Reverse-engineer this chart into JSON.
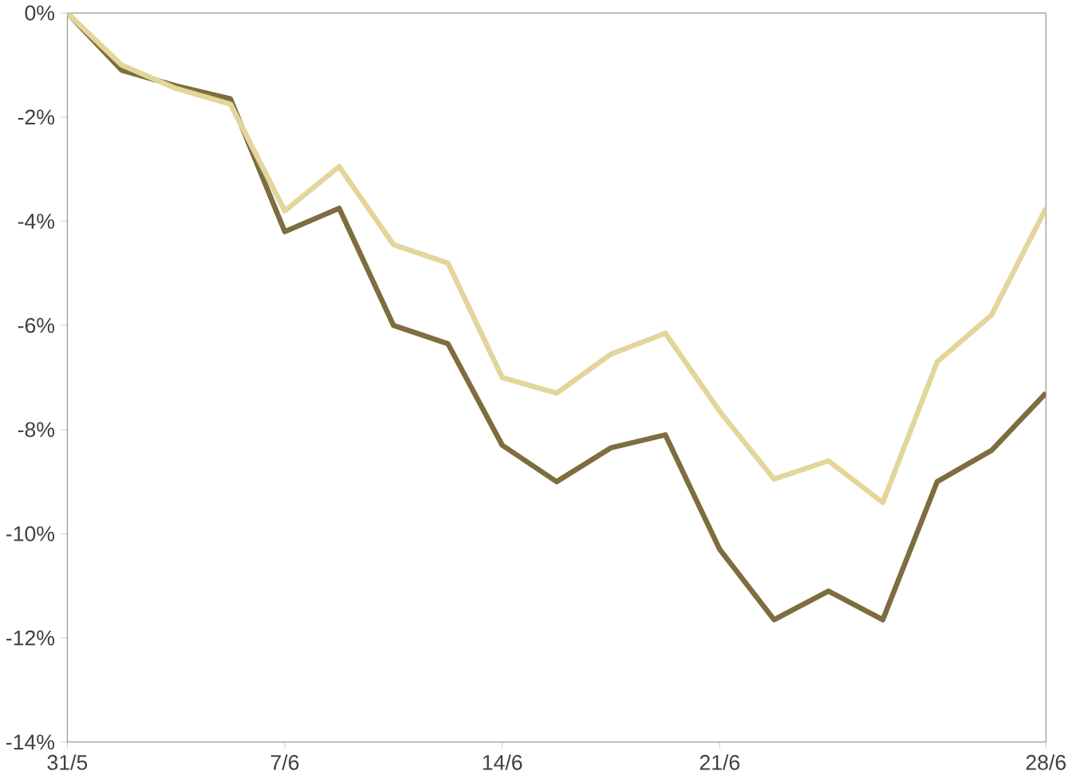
{
  "chart_data": {
    "type": "line",
    "categories": [
      "31/5",
      null,
      null,
      null,
      "7/6",
      null,
      null,
      null,
      "14/6",
      null,
      null,
      null,
      "21/6",
      null,
      null,
      null,
      null,
      null,
      "28/6"
    ],
    "series": [
      {
        "color": "#7d6d3f",
        "values": [
          0,
          -1.1,
          -1.4,
          -1.65,
          -4.2,
          -3.75,
          -6.0,
          -6.35,
          -8.3,
          -9.0,
          -8.35,
          -8.1,
          -10.3,
          -11.65,
          -11.1,
          -11.65,
          -9.0,
          -8.4,
          -7.3
        ]
      },
      {
        "color": "#e3d69b",
        "values": [
          0,
          -1.0,
          -1.45,
          -1.75,
          -3.8,
          -2.95,
          -4.45,
          -4.8,
          -7.0,
          -7.3,
          -6.55,
          -6.15,
          -7.65,
          -8.95,
          -8.6,
          -9.4,
          -6.7,
          -5.8,
          -3.75
        ]
      }
    ],
    "ylim": [
      -14,
      0
    ],
    "yticks": [
      {
        "value": -14,
        "label": "-14%"
      },
      {
        "value": -12,
        "label": "-12%"
      },
      {
        "value": -10,
        "label": "-10%"
      },
      {
        "value": -8,
        "label": "-8%"
      },
      {
        "value": -6,
        "label": "-6%"
      },
      {
        "value": -4,
        "label": "-4%"
      },
      {
        "value": -2,
        "label": "-2%"
      },
      {
        "value": 0,
        "label": "0%"
      }
    ],
    "marker": "none",
    "line_style": "solid"
  }
}
